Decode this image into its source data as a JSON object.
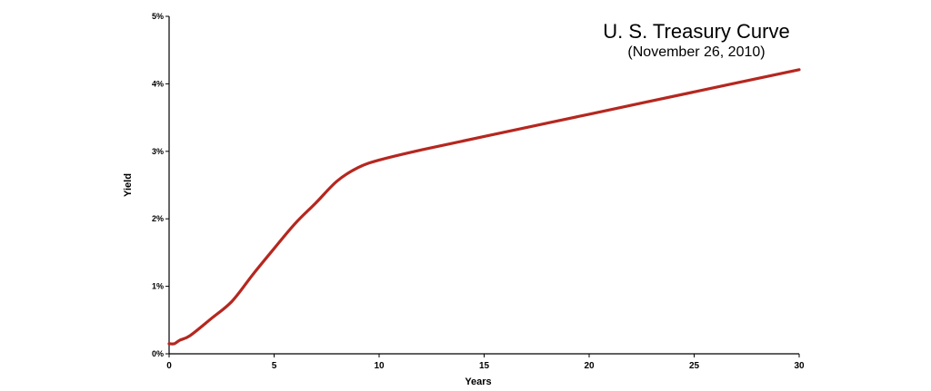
{
  "chart_data": {
    "type": "line",
    "title": "U. S. Treasury Curve",
    "subtitle": "(November 26, 2010)",
    "xlabel": "Years",
    "ylabel": "Yield",
    "xlim": [
      0,
      30
    ],
    "ylim": [
      0,
      5
    ],
    "x_ticks": [
      0,
      5,
      10,
      15,
      20,
      25,
      30
    ],
    "x_tick_labels": [
      "0",
      "5",
      "10",
      "15",
      "20",
      "25",
      "30"
    ],
    "y_ticks": [
      0,
      1,
      2,
      3,
      4,
      5
    ],
    "y_tick_labels": [
      "0%",
      "1%",
      "2%",
      "3%",
      "4%",
      "5%"
    ],
    "grid": false,
    "line_color": "#b5271f",
    "series": [
      {
        "x": [
          0,
          0.25,
          0.5,
          1,
          2,
          3,
          4,
          5,
          6,
          7,
          8,
          9,
          10,
          12,
          15,
          20,
          25,
          30
        ],
        "y": [
          0.15,
          0.15,
          0.2,
          0.27,
          0.52,
          0.78,
          1.18,
          1.56,
          1.93,
          2.24,
          2.56,
          2.76,
          2.87,
          3.02,
          3.22,
          3.55,
          3.88,
          4.21
        ]
      }
    ]
  }
}
